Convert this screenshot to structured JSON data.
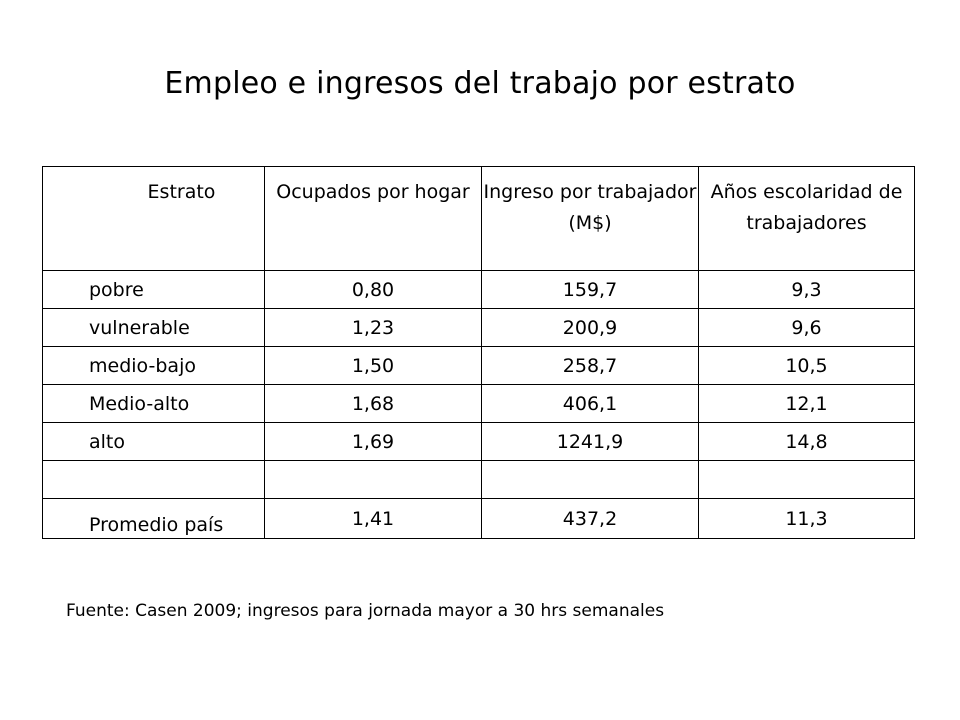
{
  "title": "Empleo e ingresos del trabajo por estrato",
  "table": {
    "headers": [
      "Estrato",
      "Ocupados por hogar",
      "Ingreso por trabajador (M$)",
      "Años escolaridad de trabajadores"
    ],
    "rows": [
      [
        "pobre",
        "0,80",
        "159,7",
        "9,3"
      ],
      [
        "vulnerable",
        "1,23",
        "200,9",
        "9,6"
      ],
      [
        "medio-bajo",
        "1,50",
        "258,7",
        "10,5"
      ],
      [
        "Medio-alto",
        "1,68",
        "406,1",
        "12,1"
      ],
      [
        "alto",
        "1,69",
        "1241,9",
        "14,8"
      ],
      [
        "",
        "",
        "",
        ""
      ],
      [
        "Promedio país",
        "1,41",
        "437,2",
        "11,3"
      ]
    ]
  },
  "source_note": "Fuente: Casen 2009; ingresos para jornada mayor a 30 hrs semanales"
}
